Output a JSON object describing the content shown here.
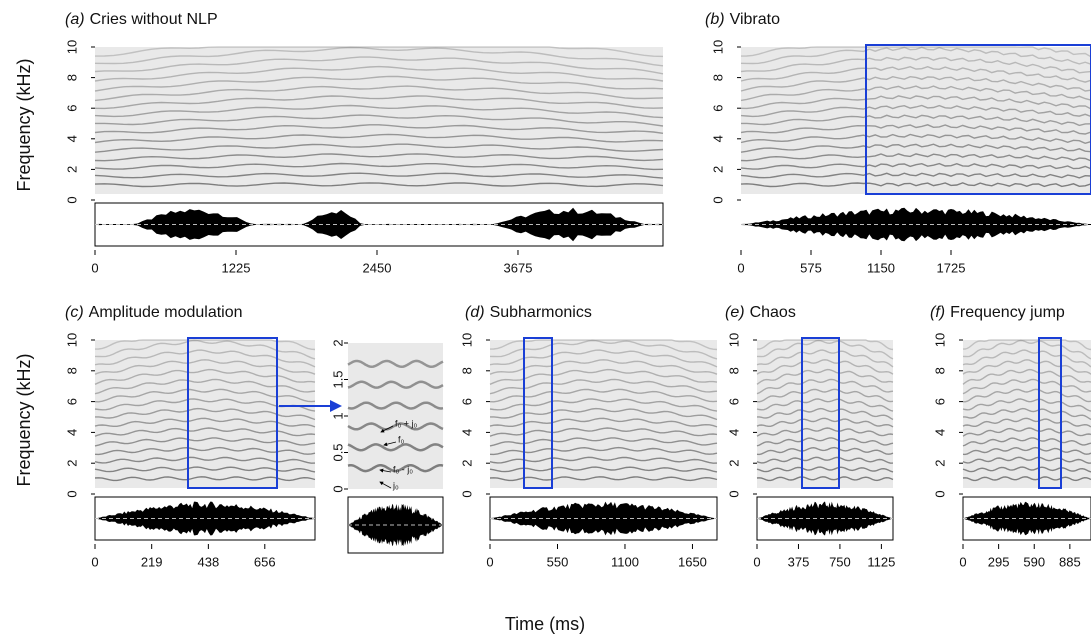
{
  "y_axis_label": "Frequency (kHz)",
  "x_axis_label": "Time (ms)",
  "chart_data": [
    {
      "type": "spectrogram",
      "label": "(a)",
      "title": "Cries without NLP",
      "ylim": [
        0,
        10
      ],
      "yticks": [
        0,
        2,
        4,
        6,
        8,
        10
      ],
      "xlim": [
        0,
        4935
      ],
      "xticks": [
        0,
        1225,
        2450,
        3675
      ]
    },
    {
      "type": "spectrogram",
      "label": "(b)",
      "title": "Vibrato",
      "ylim": [
        0,
        10
      ],
      "yticks": [
        0,
        2,
        4,
        6,
        8,
        10
      ],
      "xlim": [
        0,
        2875
      ],
      "xticks": [
        0,
        575,
        1150,
        1725
      ]
    },
    {
      "type": "spectrogram",
      "label": "(c)",
      "title": "Amplitude modulation",
      "ylim": [
        0,
        10
      ],
      "yticks": [
        0,
        2,
        4,
        6,
        8,
        10
      ],
      "xlim": [
        0,
        850
      ],
      "xticks": [
        0,
        219,
        438,
        656
      ]
    },
    {
      "type": "inset",
      "ylim": [
        0,
        2
      ],
      "yticks": [
        0,
        0.5,
        1,
        1.5,
        2
      ],
      "annotations": [
        "f₀ + j₀",
        "f₀",
        "f₀ - j₀",
        "j₀"
      ]
    },
    {
      "type": "spectrogram",
      "label": "(d)",
      "title": "Subharmonics",
      "ylim": [
        0,
        10
      ],
      "yticks": [
        0,
        2,
        4,
        6,
        8,
        10
      ],
      "xlim": [
        0,
        1850
      ],
      "xticks": [
        0,
        550,
        1100,
        1650
      ]
    },
    {
      "type": "spectrogram",
      "label": "(e)",
      "title": "Chaos",
      "ylim": [
        0,
        10
      ],
      "yticks": [
        0,
        2,
        4,
        6,
        8,
        10
      ],
      "xlim": [
        0,
        1230
      ],
      "xticks": [
        0,
        375,
        750,
        1125
      ]
    },
    {
      "type": "spectrogram",
      "label": "(f)",
      "title": "Frequency jump",
      "ylim": [
        0,
        10
      ],
      "yticks": [
        0,
        2,
        4,
        6,
        8,
        10
      ],
      "xlim": [
        0,
        1060
      ],
      "xticks": [
        0,
        295,
        590,
        885
      ]
    }
  ]
}
